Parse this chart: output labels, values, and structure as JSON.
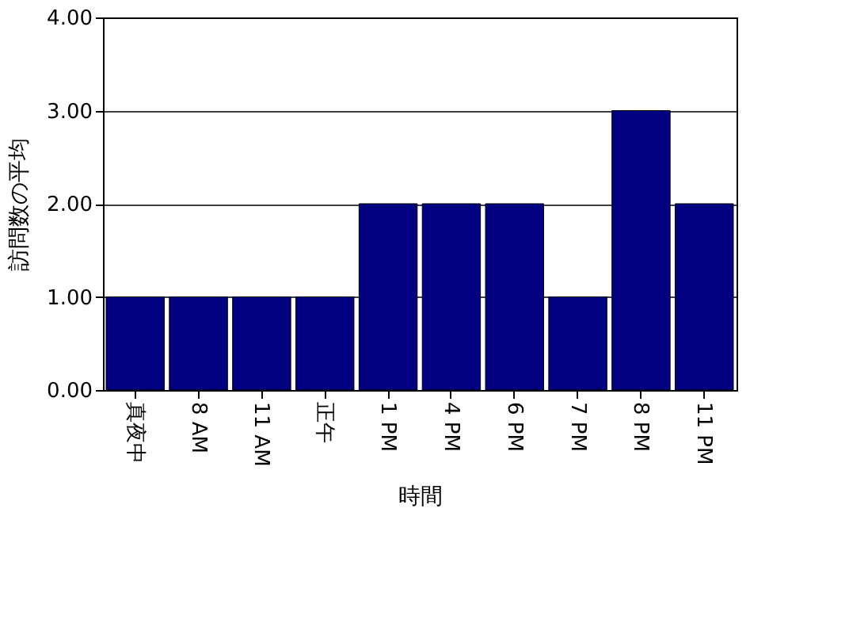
{
  "chart_data": {
    "type": "bar",
    "xlabel": "時間",
    "ylabel": "訪問数の平均",
    "categories": [
      "真夜中",
      "8 AM",
      "11 AM",
      "正午",
      "1 PM",
      "4 PM",
      "6 PM",
      "7 PM",
      "8 PM",
      "11 PM"
    ],
    "values": [
      1,
      1,
      1,
      1,
      2,
      2,
      2,
      1,
      3,
      2
    ],
    "color": "#000080",
    "ylim": [
      0,
      4
    ],
    "yticks": [
      {
        "value": 0,
        "label": "0.00"
      },
      {
        "value": 1,
        "label": "1.00"
      },
      {
        "value": 2,
        "label": "2.00"
      },
      {
        "value": 3,
        "label": "3.00"
      },
      {
        "value": 4,
        "label": "4.00"
      }
    ],
    "grid": "y"
  }
}
